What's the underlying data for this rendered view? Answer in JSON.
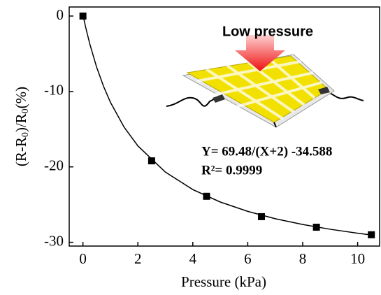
{
  "chart_data": {
    "type": "scatter",
    "x_label": "Pressure (kPa)",
    "y_label": [
      "(R-R",
      "0",
      ")/R",
      "0",
      "(%)"
    ],
    "x": [
      0,
      2.5,
      4.5,
      6.5,
      8.5,
      10.5
    ],
    "values": [
      0,
      -19.2,
      -23.9,
      -26.6,
      -28.0,
      -29.0
    ],
    "color": "#000000",
    "fit": {
      "x": [
        0,
        0.1,
        0.25,
        0.5,
        0.75,
        1,
        1.5,
        2,
        3,
        4,
        5,
        6,
        7,
        8,
        9,
        10,
        10.5
      ],
      "values": [
        0.15,
        -1.5,
        -3.71,
        -6.8,
        -9.32,
        -11.43,
        -14.74,
        -17.22,
        -20.69,
        -23.01,
        -24.66,
        -25.9,
        -26.87,
        -27.64,
        -28.27,
        -28.8,
        -29.03
      ]
    },
    "xlim": [
      -0.5,
      10.8
    ],
    "ylim": [
      -30.5,
      1.2
    ],
    "xticks": [
      0,
      2,
      4,
      6,
      8,
      10
    ],
    "yticks": [
      0,
      -10,
      -20,
      -30
    ],
    "annotations": [
      "Y= 69.48/(X+2) -34.588",
      "R²= 0.9999"
    ],
    "inset_label": "Low pressure"
  }
}
